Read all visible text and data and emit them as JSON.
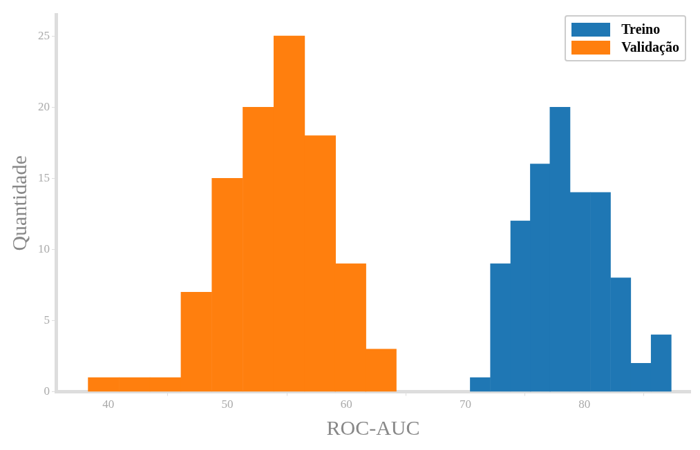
{
  "chart_data": {
    "type": "bar",
    "xlabel": "ROC-AUC",
    "ylabel": "Quantidade",
    "series": [
      {
        "name": "Treino",
        "color": "#1f77b4",
        "x": [
          71.25,
          72.95,
          74.65,
          76.3,
          77.95,
          79.65,
          81.35,
          83.05,
          84.75,
          86.45
        ],
        "values": [
          1,
          9,
          12,
          16,
          20,
          14,
          14,
          8,
          2,
          4
        ]
      },
      {
        "name": "Validação",
        "color": "#ff7f0e",
        "x": [
          39.6,
          42.2,
          44.8,
          47.4,
          50.0,
          52.6,
          55.2,
          57.8,
          60.35,
          62.9
        ],
        "values": [
          1,
          1,
          1,
          7,
          15,
          20,
          25,
          18,
          9,
          3
        ]
      }
    ],
    "xlim": [
      35.6,
      88.9
    ],
    "ylim": [
      0,
      26.5
    ],
    "xticks": [
      40,
      50,
      60,
      70,
      80
    ],
    "yticks": [
      0,
      5,
      10,
      15,
      20,
      25
    ],
    "grid": false,
    "legend": "top right"
  }
}
